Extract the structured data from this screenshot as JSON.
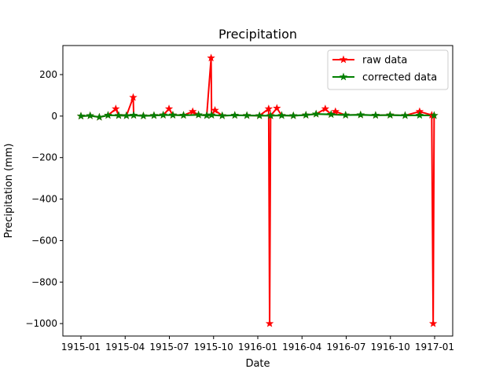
{
  "chart_data": {
    "type": "line",
    "title": "Precipitation",
    "xlabel": "Date",
    "ylabel": "Precipitation (mm)",
    "x_range": [
      "1915-01-01",
      "1917-01-01"
    ],
    "ylim": [
      -1060,
      340
    ],
    "grid": false,
    "legend_placement": "top-right",
    "x_tick_labels": [
      "1915-01",
      "1915-04",
      "1915-07",
      "1915-10",
      "1916-01",
      "1916-04",
      "1916-07",
      "1916-10",
      "1917-01"
    ],
    "y_tick_labels": [
      "200",
      "0",
      "−200",
      "−400",
      "−600",
      "−800",
      "−1000"
    ],
    "y_tick_values": [
      200,
      0,
      -200,
      -400,
      -600,
      -800,
      -1000
    ],
    "series": [
      {
        "name": "raw data",
        "color": "#ff0000",
        "marker": "star",
        "points": [
          {
            "x": "1915-01-01",
            "y": 0
          },
          {
            "x": "1915-01-20",
            "y": 2
          },
          {
            "x": "1915-02-08",
            "y": -5
          },
          {
            "x": "1915-02-26",
            "y": 4
          },
          {
            "x": "1915-03-14",
            "y": 35
          },
          {
            "x": "1915-03-20",
            "y": 3
          },
          {
            "x": "1915-04-05",
            "y": 2
          },
          {
            "x": "1915-04-19",
            "y": 90
          },
          {
            "x": "1915-04-20",
            "y": 4
          },
          {
            "x": "1915-05-10",
            "y": 1
          },
          {
            "x": "1915-06-01",
            "y": 3
          },
          {
            "x": "1915-06-20",
            "y": 5
          },
          {
            "x": "1915-07-02",
            "y": 35
          },
          {
            "x": "1915-07-10",
            "y": 5
          },
          {
            "x": "1915-08-01",
            "y": 4
          },
          {
            "x": "1915-08-20",
            "y": 22
          },
          {
            "x": "1915-09-01",
            "y": 6
          },
          {
            "x": "1915-09-18",
            "y": 3
          },
          {
            "x": "1915-09-27",
            "y": 280
          },
          {
            "x": "1915-09-28",
            "y": 5
          },
          {
            "x": "1915-10-05",
            "y": 28
          },
          {
            "x": "1915-10-20",
            "y": 2
          },
          {
            "x": "1915-11-15",
            "y": 4
          },
          {
            "x": "1915-12-10",
            "y": 3
          },
          {
            "x": "1916-01-05",
            "y": 2
          },
          {
            "x": "1916-01-24",
            "y": 35
          },
          {
            "x": "1916-01-26",
            "y": -1000
          },
          {
            "x": "1916-01-28",
            "y": 2
          },
          {
            "x": "1916-02-10",
            "y": 38
          },
          {
            "x": "1916-02-20",
            "y": 3
          },
          {
            "x": "1916-03-15",
            "y": 2
          },
          {
            "x": "1916-04-10",
            "y": 5
          },
          {
            "x": "1916-05-01",
            "y": 10
          },
          {
            "x": "1916-05-20",
            "y": 35
          },
          {
            "x": "1916-06-01",
            "y": 8
          },
          {
            "x": "1916-06-10",
            "y": 22
          },
          {
            "x": "1916-07-01",
            "y": 5
          },
          {
            "x": "1916-08-01",
            "y": 6
          },
          {
            "x": "1916-09-01",
            "y": 4
          },
          {
            "x": "1916-10-01",
            "y": 5
          },
          {
            "x": "1916-11-01",
            "y": 3
          },
          {
            "x": "1916-12-01",
            "y": 22
          },
          {
            "x": "1916-12-26",
            "y": 5
          },
          {
            "x": "1916-12-29",
            "y": -1000
          },
          {
            "x": "1916-12-31",
            "y": 3
          }
        ]
      },
      {
        "name": "corrected data",
        "color": "#008000",
        "marker": "star",
        "points": [
          {
            "x": "1915-01-01",
            "y": 0
          },
          {
            "x": "1915-01-20",
            "y": 2
          },
          {
            "x": "1915-02-08",
            "y": -5
          },
          {
            "x": "1915-02-26",
            "y": 4
          },
          {
            "x": "1915-03-20",
            "y": 3
          },
          {
            "x": "1915-04-05",
            "y": 2
          },
          {
            "x": "1915-04-20",
            "y": 4
          },
          {
            "x": "1915-05-10",
            "y": 1
          },
          {
            "x": "1915-06-01",
            "y": 3
          },
          {
            "x": "1915-06-20",
            "y": 5
          },
          {
            "x": "1915-07-10",
            "y": 5
          },
          {
            "x": "1915-08-01",
            "y": 4
          },
          {
            "x": "1915-09-01",
            "y": 6
          },
          {
            "x": "1915-09-18",
            "y": 3
          },
          {
            "x": "1915-09-28",
            "y": 5
          },
          {
            "x": "1915-10-20",
            "y": 2
          },
          {
            "x": "1915-11-15",
            "y": 4
          },
          {
            "x": "1915-12-10",
            "y": 3
          },
          {
            "x": "1916-01-05",
            "y": 2
          },
          {
            "x": "1916-01-28",
            "y": 2
          },
          {
            "x": "1916-02-20",
            "y": 3
          },
          {
            "x": "1916-03-15",
            "y": 2
          },
          {
            "x": "1916-04-10",
            "y": 5
          },
          {
            "x": "1916-05-01",
            "y": 10
          },
          {
            "x": "1916-06-01",
            "y": 8
          },
          {
            "x": "1916-07-01",
            "y": 5
          },
          {
            "x": "1916-08-01",
            "y": 6
          },
          {
            "x": "1916-09-01",
            "y": 4
          },
          {
            "x": "1916-10-01",
            "y": 5
          },
          {
            "x": "1916-11-01",
            "y": 3
          },
          {
            "x": "1916-12-01",
            "y": 4
          },
          {
            "x": "1916-12-31",
            "y": 3
          }
        ]
      }
    ]
  }
}
